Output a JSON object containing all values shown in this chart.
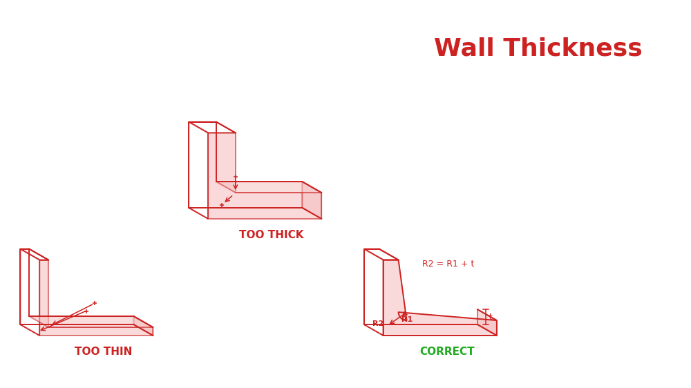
{
  "title": "Wall Thickness",
  "title_color": "#cc2222",
  "title_fontsize": 26,
  "bg_color": "#ffffff",
  "line_color": "#cc2222",
  "fill_color": "#f5c0c0",
  "fill_alpha": 0.6,
  "label_too_thick": "TOO THICK",
  "label_too_thin": "TOO THIN",
  "label_correct": "CORRECT",
  "label_color_red": "#cc2222",
  "label_color_green": "#22aa22",
  "label_fontsize": 11,
  "lw": 1.4
}
